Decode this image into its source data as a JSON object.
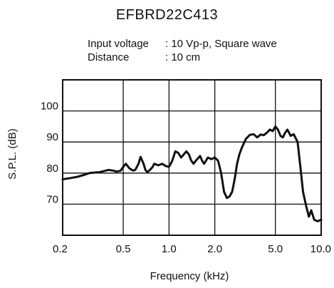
{
  "chart_data": {
    "type": "line",
    "title": "EFBRD22C413",
    "conditions": [
      {
        "label": "Input voltage",
        "value": ": 10 Vp-p, Square wave"
      },
      {
        "label": "Distance",
        "value": ": 10 cm"
      }
    ],
    "xlabel": "Frequency (kHz)",
    "ylabel": "S.P.L. (dB)",
    "x_scale": "log",
    "xlim": [
      0.2,
      10.0
    ],
    "ylim": [
      60,
      110
    ],
    "xticks": [
      {
        "value": 0.2,
        "label": "0.2"
      },
      {
        "value": 0.5,
        "label": "0.5"
      },
      {
        "value": 1.0,
        "label": "1.0"
      },
      {
        "value": 2.0,
        "label": "2.0"
      },
      {
        "value": 5.0,
        "label": "5.0"
      },
      {
        "value": 10.0,
        "label": "10.0"
      }
    ],
    "yticks": [
      {
        "value": 70,
        "label": "70"
      },
      {
        "value": 80,
        "label": "80"
      },
      {
        "value": 90,
        "label": "90"
      },
      {
        "value": 100,
        "label": "100"
      }
    ],
    "grid": true,
    "color": "#111111",
    "series": [
      {
        "x": [
          0.2,
          0.22,
          0.25,
          0.28,
          0.3,
          0.33,
          0.35,
          0.37,
          0.4,
          0.43,
          0.45,
          0.48,
          0.5,
          0.52,
          0.55,
          0.58,
          0.6,
          0.63,
          0.65,
          0.68,
          0.7,
          0.72,
          0.75,
          0.78,
          0.8,
          0.85,
          0.9,
          0.95,
          1.0,
          1.05,
          1.1,
          1.15,
          1.2,
          1.3,
          1.35,
          1.4,
          1.45,
          1.5,
          1.6,
          1.65,
          1.7,
          1.8,
          1.9,
          2.0,
          2.1,
          2.2,
          2.3,
          2.4,
          2.5,
          2.6,
          2.7,
          2.8,
          2.9,
          3.0,
          3.2,
          3.4,
          3.6,
          3.8,
          4.0,
          4.2,
          4.4,
          4.6,
          4.8,
          5.0,
          5.2,
          5.4,
          5.6,
          5.8,
          6.0,
          6.3,
          6.6,
          7.0,
          7.3,
          7.6,
          8.0,
          8.3,
          8.6,
          9.0,
          9.5,
          10.0
        ],
        "y": [
          78,
          78.3,
          78.8,
          79.5,
          80,
          80.2,
          80.3,
          80.6,
          81,
          80.8,
          80.5,
          80.7,
          82,
          83,
          81.5,
          80.8,
          81,
          83,
          85.2,
          83,
          81,
          80.3,
          81,
          82,
          83,
          82.5,
          83,
          82.3,
          82,
          84,
          87,
          86.5,
          85,
          87,
          86,
          84,
          83,
          84,
          85.5,
          84,
          83,
          85,
          84.5,
          85,
          84,
          80,
          74,
          72,
          72.5,
          74,
          78,
          83,
          86,
          88,
          91,
          92.3,
          92.5,
          91.5,
          92.4,
          92.2,
          93,
          94,
          93.5,
          95,
          94,
          92,
          91.5,
          93,
          94,
          92,
          92.5,
          90,
          82,
          74,
          69,
          66,
          68,
          65,
          64.5,
          65
        ]
      }
    ]
  }
}
